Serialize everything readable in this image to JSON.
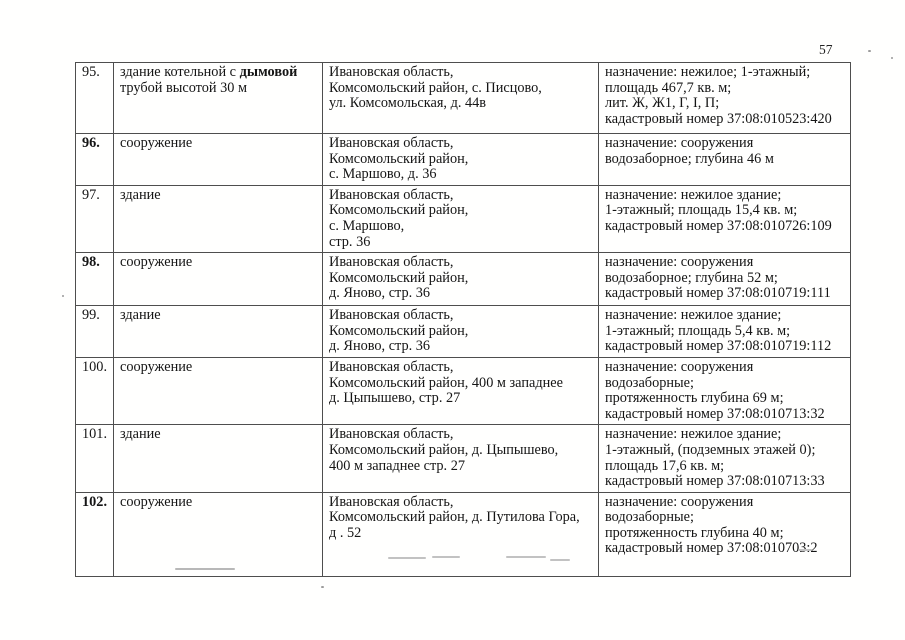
{
  "page": {
    "number": "57"
  },
  "table": {
    "rows": [
      {
        "num": [
          {
            "t": "95."
          }
        ],
        "name": [
          {
            "t": "здание котельной с "
          },
          {
            "t": "дымовой",
            "b": true
          },
          {
            "t": "\nтрубой высотой 30 м"
          }
        ],
        "address_lines": [
          "Ивановская область,",
          "Комсомольский район, с. Писцово,",
          "ул. Комсомольская, д. 44в"
        ],
        "designation_lines": [
          "назначение: нежилое; 1-этажный;",
          "площадь 467,7 кв. м;",
          "лит. Ж, Ж1, Г, I, П;",
          "кадастровый номер 37:08:010523:420"
        ]
      },
      {
        "num": [
          {
            "t": "96.",
            "b": true
          }
        ],
        "name": [
          {
            "t": "сооружение"
          }
        ],
        "address_lines": [
          "Ивановская область,",
          "Комсомольский район,",
          "с. Маршово, д. 36"
        ],
        "designation_lines": [
          "назначение: сооружения",
          "водозаборное; глубина 46 м"
        ]
      },
      {
        "num": [
          {
            "t": "97."
          }
        ],
        "name": [
          {
            "t": "здание"
          }
        ],
        "address_lines": [
          "Ивановская область,",
          "Комсомольский район,",
          "с. Маршово,",
          "стр. 36"
        ],
        "designation_lines": [
          "назначение: нежилое здание;",
          "1-этажный; площадь 15,4 кв. м;",
          "кадастровый номер 37:08:010726:109"
        ]
      },
      {
        "num": [
          {
            "t": "98.",
            "b": true
          }
        ],
        "name": [
          {
            "t": "сооружение"
          }
        ],
        "address_lines": [
          "Ивановская область,",
          "Комсомольский район,",
          "д. Яново, стр. 36"
        ],
        "designation_lines": [
          "назначение: сооружения",
          "водозаборное; глубина 52 м;",
          "кадастровый номер 37:08:010719:111"
        ]
      },
      {
        "num": [
          {
            "t": "99."
          }
        ],
        "name": [
          {
            "t": "здание"
          }
        ],
        "address_lines": [
          "Ивановская область,",
          "Комсомольский район,",
          "д. Яново, стр. 36"
        ],
        "designation_lines": [
          "назначение: нежилое здание;",
          "1-этажный; площадь 5,4 кв. м;",
          "кадастровый номер 37:08:010719:112"
        ]
      },
      {
        "num": [
          {
            "t": "100."
          }
        ],
        "name": [
          {
            "t": "сооружение"
          }
        ],
        "address_lines": [
          "Ивановская область,",
          "Комсомольский район, 400 м западнее",
          "д. Цыпышево, стр. 27"
        ],
        "designation_lines": [
          "назначение: сооружения",
          "водозаборные;",
          "протяженность глубина 69 м;",
          "кадастровый номер 37:08:010713:32"
        ]
      },
      {
        "num": [
          {
            "t": "101."
          }
        ],
        "name": [
          {
            "t": "здание"
          }
        ],
        "address_lines": [
          "Ивановская область,",
          "Комсомольский район, д. Цыпышево,",
          "400 м западнее стр. 27"
        ],
        "designation_lines": [
          "назначение: нежилое здание;",
          "1-этажный, (подземных этажей 0);",
          "площадь 17,6 кв. м;",
          "кадастровый номер 37:08:010713:33"
        ]
      },
      {
        "num": [
          {
            "t": "102.",
            "b": true
          }
        ],
        "name": [
          {
            "t": "сооружение"
          }
        ],
        "address_lines": [
          "Ивановская область,",
          "Комсомольский район, д. Путилова Гора,",
          "д . 52"
        ],
        "designation_lines": [
          "назначение: сооружения",
          "водозаборные;",
          "протяженность глубина 40 м;",
          "кадастровый номер 37:08:010703:2"
        ]
      }
    ]
  }
}
